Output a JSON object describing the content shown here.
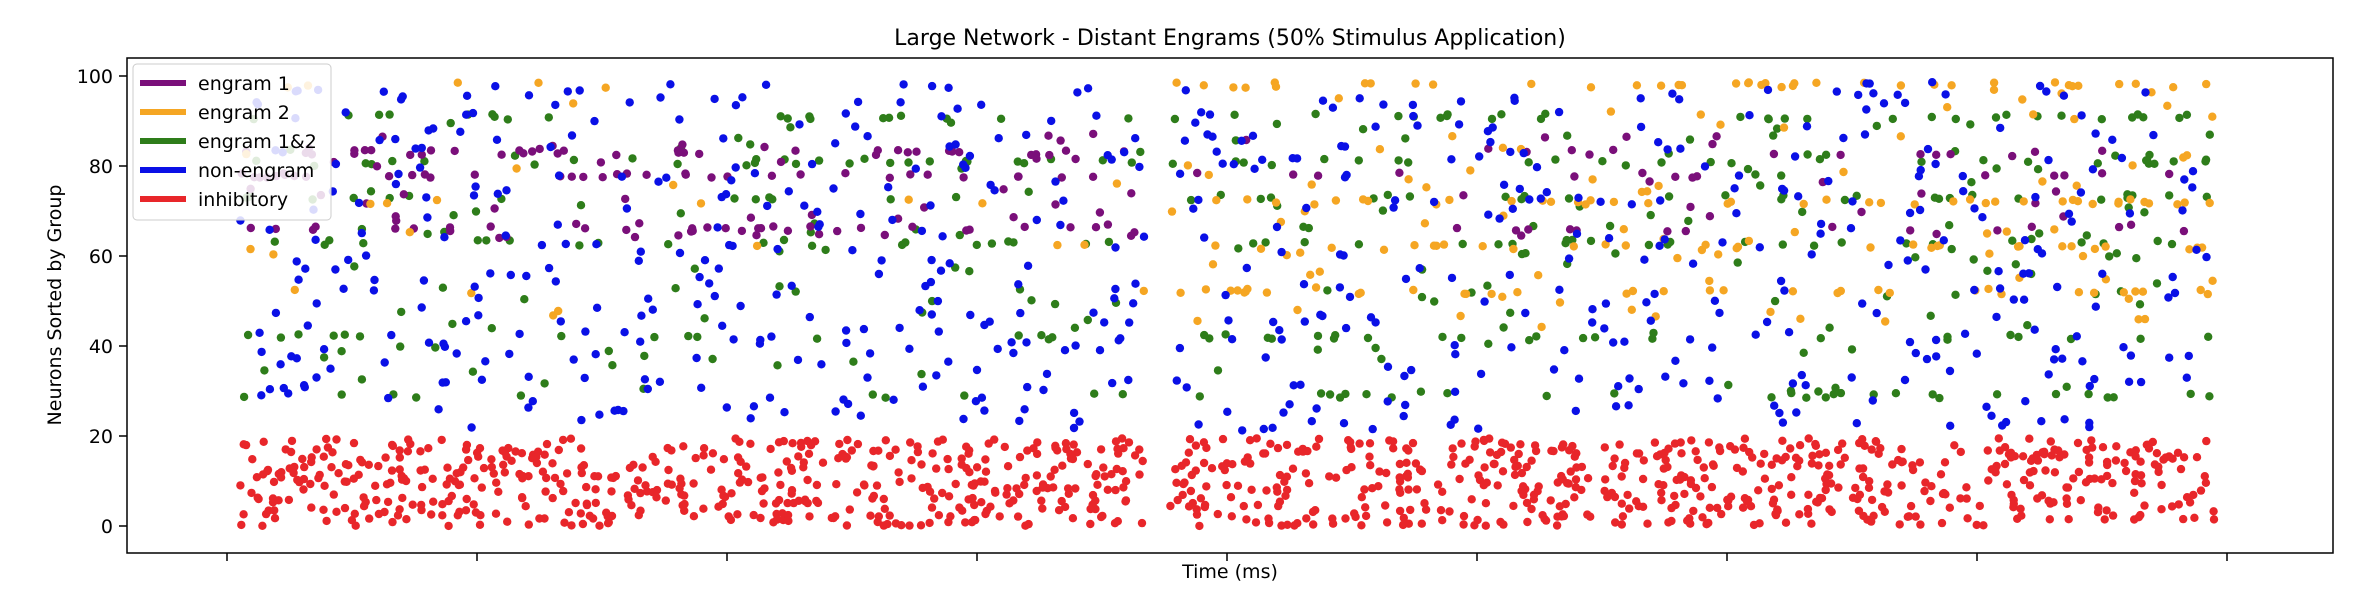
{
  "chart_data": {
    "type": "scatter",
    "title": "Large Network - Distant Engrams (50% Stimulus Application)",
    "xlabel": "Time (ms)",
    "ylabel": "Neurons Sorted by Group",
    "x_tick_labels": [],
    "y_ticks": [
      0,
      20,
      40,
      60,
      80,
      100
    ],
    "ylim": [
      -6,
      104
    ],
    "grid": false,
    "legend_position": "top-left",
    "series_order": [
      "engram1",
      "engram2",
      "engram12",
      "nonengram",
      "inhibitory"
    ],
    "series": {
      "engram1": {
        "name": "engram 1",
        "color": "#7a0f7a"
      },
      "engram2": {
        "name": "engram 2",
        "color": "#f5a623"
      },
      "engram12": {
        "name": "engram 1&2",
        "color": "#2e7d1a"
      },
      "nonengram": {
        "name": "non-engram",
        "color": "#0a10e6"
      },
      "inhibitory": {
        "name": "inhibitory",
        "color": "#e8262a"
      }
    }
  }
}
